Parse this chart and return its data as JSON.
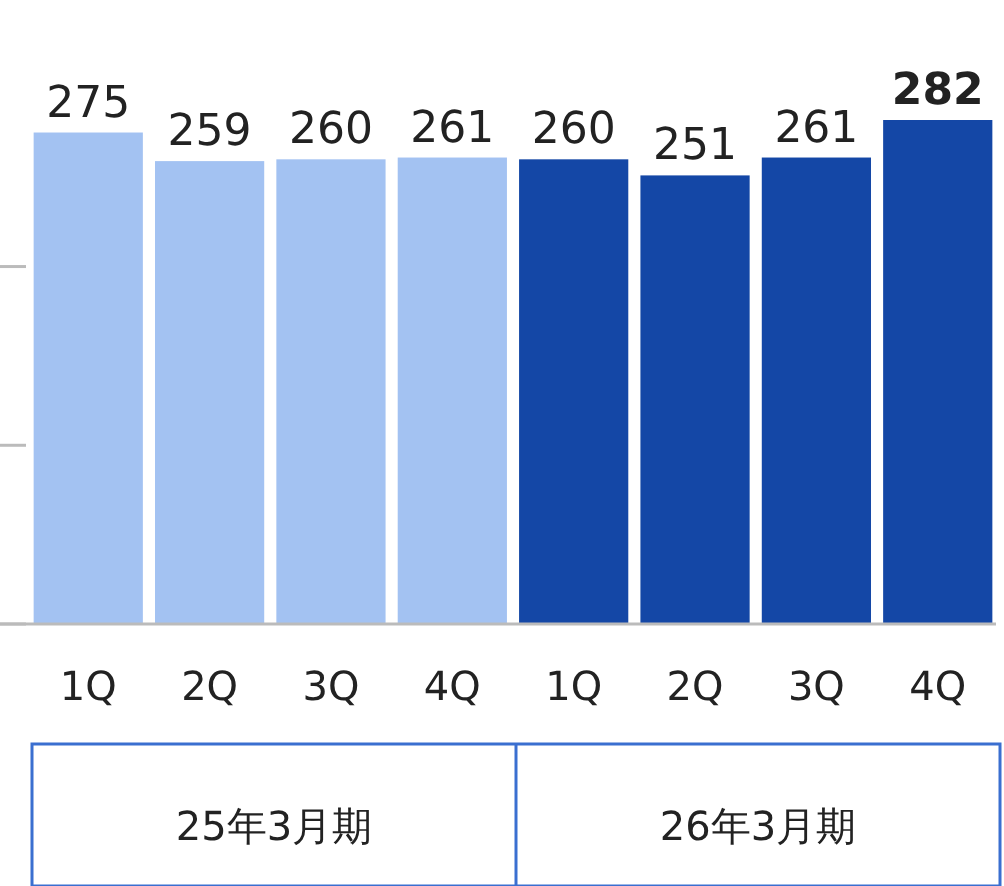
{
  "chart_data": {
    "type": "bar",
    "categories": [
      "1Q",
      "2Q",
      "3Q",
      "4Q",
      "1Q",
      "2Q",
      "3Q",
      "4Q"
    ],
    "values": [
      275,
      259,
      260,
      261,
      260,
      251,
      261,
      282
    ],
    "colors": [
      "#a3c2f2",
      "#a3c2f2",
      "#a3c2f2",
      "#a3c2f2",
      "#1447a6",
      "#1447a6",
      "#1447a6",
      "#1447a6"
    ],
    "yticks": [
      {
        "value": 0,
        "label": null
      },
      {
        "value": 100,
        "label": null
      },
      {
        "value": 200,
        "label": null
      }
    ],
    "data_labels": true,
    "annotations": [
      "25年3月期",
      "26年3月期"
    ]
  }
}
